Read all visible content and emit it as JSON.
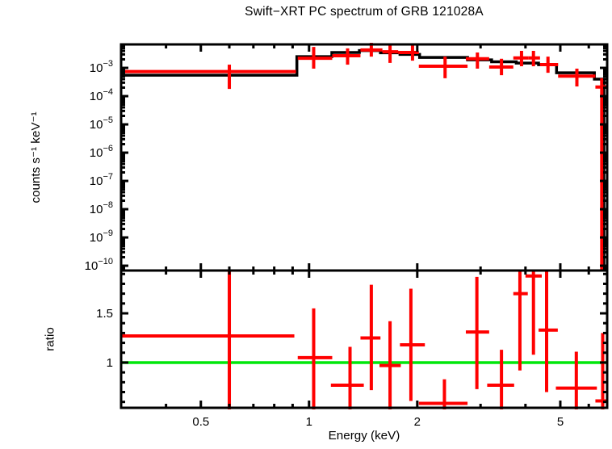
{
  "chart_data": {
    "type": "scatter",
    "title": "Swift−XRT PC spectrum of GRB 121028A",
    "xlabel": "Energy (keV)",
    "xscale": "log",
    "xlim": [
      0.3,
      6.75
    ],
    "xticks_labeled": [
      {
        "value": 0.5,
        "label": "0.5"
      },
      {
        "value": 1,
        "label": "1"
      },
      {
        "value": 2,
        "label": "2"
      },
      {
        "value": 5,
        "label": "5"
      }
    ],
    "xticks_minor": [
      0.4,
      0.6,
      0.7,
      0.8,
      0.9,
      3,
      4,
      6
    ],
    "colors": {
      "data": "#ff0000",
      "model": "#000000",
      "reference": "#00e70b",
      "axis": "#000000",
      "background": "#ffffff"
    },
    "panels": [
      {
        "name": "spectrum",
        "ylabel": "counts s⁻¹ keV⁻¹",
        "yscale": "log",
        "ylim_log10": [
          -10.17,
          -2.17
        ],
        "ytick_exponents": [
          -3,
          -4,
          -5,
          -6,
          -7,
          -8,
          -9,
          -10
        ],
        "series": [
          {
            "name": "data",
            "style": "cross-errorbar",
            "points": [
              {
                "e": 0.6,
                "e_lo": 0.3,
                "e_hi": 0.92,
                "v": 0.00074,
                "v_lo": 0.00018,
                "v_hi": 0.0013
              },
              {
                "e": 1.03,
                "e_lo": 0.93,
                "e_hi": 1.16,
                "v": 0.0022,
                "v_lo": 0.00094,
                "v_hi": 0.0055
              },
              {
                "e": 1.28,
                "e_lo": 1.16,
                "e_hi": 1.39,
                "v": 0.0027,
                "v_lo": 0.0013,
                "v_hi": 0.0049
              },
              {
                "e": 1.49,
                "e_lo": 1.39,
                "e_hi": 1.6,
                "v": 0.0043,
                "v_lo": 0.0025,
                "v_hi": 0.0077
              },
              {
                "e": 1.68,
                "e_lo": 1.6,
                "e_hi": 1.77,
                "v": 0.0037,
                "v_lo": 0.0015,
                "v_hi": 0.0067
              },
              {
                "e": 1.94,
                "e_lo": 1.77,
                "e_hi": 2.02,
                "v": 0.0035,
                "v_lo": 0.0018,
                "v_hi": 0.0063
              },
              {
                "e": 2.39,
                "e_lo": 2.02,
                "e_hi": 2.76,
                "v": 0.00114,
                "v_lo": 0.00043,
                "v_hi": 0.0025
              },
              {
                "e": 2.94,
                "e_lo": 2.73,
                "e_hi": 3.17,
                "v": 0.0021,
                "v_lo": 0.00094,
                "v_hi": 0.0035
              },
              {
                "e": 3.43,
                "e_lo": 3.17,
                "e_hi": 3.7,
                "v": 0.00107,
                "v_lo": 0.00055,
                "v_hi": 0.0021
              },
              {
                "e": 3.9,
                "e_lo": 3.7,
                "e_hi": 4.07,
                "v": 0.00225,
                "v_lo": 0.00114,
                "v_hi": 0.004
              },
              {
                "e": 4.21,
                "e_lo": 4.07,
                "e_hi": 4.39,
                "v": 0.00225,
                "v_lo": 0.00114,
                "v_hi": 0.004
              },
              {
                "e": 4.62,
                "e_lo": 4.39,
                "e_hi": 4.93,
                "v": 0.0013,
                "v_lo": 0.00067,
                "v_hi": 0.0025
              },
              {
                "e": 5.56,
                "e_lo": 4.93,
                "e_hi": 6.26,
                "v": 0.00051,
                "v_lo": 0.00022,
                "v_hi": 0.00094
              },
              {
                "e": 6.52,
                "e_lo": 6.26,
                "e_hi": 6.74,
                "v": 0.00021,
                "v_lo": null,
                "v_hi": 0.00043
              }
            ]
          },
          {
            "name": "model",
            "style": "step-line",
            "steps": [
              {
                "e_lo": 0.3,
                "e_hi": 0.925,
                "v": 0.00055
              },
              {
                "e_lo": 0.925,
                "e_hi": 1.157,
                "v": 0.0025
              },
              {
                "e_lo": 1.157,
                "e_hi": 1.38,
                "v": 0.0035
              },
              {
                "e_lo": 1.38,
                "e_hi": 1.58,
                "v": 0.0041
              },
              {
                "e_lo": 1.58,
                "e_hi": 1.79,
                "v": 0.0034
              },
              {
                "e_lo": 1.79,
                "e_hi": 2.03,
                "v": 0.003
              },
              {
                "e_lo": 2.03,
                "e_hi": 2.76,
                "v": 0.00235
              },
              {
                "e_lo": 2.76,
                "e_hi": 3.22,
                "v": 0.00193
              },
              {
                "e_lo": 3.22,
                "e_hi": 3.77,
                "v": 0.00164
              },
              {
                "e_lo": 3.77,
                "e_hi": 4.35,
                "v": 0.00148
              },
              {
                "e_lo": 4.35,
                "e_hi": 4.88,
                "v": 0.0013
              },
              {
                "e_lo": 4.88,
                "e_hi": 6.22,
                "v": 0.00067
              },
              {
                "e_lo": 6.22,
                "e_hi": 6.61,
                "v": 0.0004
              }
            ],
            "drop_to_floor_at": 6.61
          }
        ]
      },
      {
        "name": "ratio",
        "ylabel": "ratio",
        "yscale": "linear",
        "ylim": [
          0.54,
          1.935
        ],
        "yticks_labeled": [
          {
            "value": 1,
            "label": "1"
          },
          {
            "value": 1.5,
            "label": "1.5"
          }
        ],
        "yticks_minor": [
          0.6,
          0.7,
          0.8,
          0.9,
          1.1,
          1.2,
          1.3,
          1.4,
          1.6,
          1.7,
          1.8,
          1.9
        ],
        "reference_line": {
          "value": 1.0
        },
        "points": [
          {
            "e": 0.6,
            "e_lo": 0.3,
            "e_hi": 0.91,
            "ratio": 1.27,
            "r_lo": null,
            "r_hi": null
          },
          {
            "e": 1.03,
            "e_lo": 0.93,
            "e_hi": 1.16,
            "ratio": 1.05,
            "r_lo": null,
            "r_hi": 1.55
          },
          {
            "e": 1.3,
            "e_lo": 1.15,
            "e_hi": 1.42,
            "ratio": 0.77,
            "r_lo": null,
            "r_hi": 1.16
          },
          {
            "e": 1.49,
            "e_lo": 1.39,
            "e_hi": 1.58,
            "ratio": 1.25,
            "r_lo": 0.72,
            "r_hi": 1.79
          },
          {
            "e": 1.68,
            "e_lo": 1.57,
            "e_hi": 1.8,
            "ratio": 0.97,
            "r_lo": null,
            "r_hi": 1.42
          },
          {
            "e": 1.92,
            "e_lo": 1.79,
            "e_hi": 2.1,
            "ratio": 1.18,
            "r_lo": 0.61,
            "r_hi": 1.75
          },
          {
            "e": 2.38,
            "e_lo": 2.02,
            "e_hi": 2.76,
            "ratio": 0.585,
            "r_lo": null,
            "r_hi": 0.83
          },
          {
            "e": 2.93,
            "e_lo": 2.73,
            "e_hi": 3.17,
            "ratio": 1.31,
            "r_lo": 0.73,
            "r_hi": 1.87
          },
          {
            "e": 3.43,
            "e_lo": 3.13,
            "e_hi": 3.72,
            "ratio": 0.77,
            "r_lo": null,
            "r_hi": 1.13
          },
          {
            "e": 3.86,
            "e_lo": 3.7,
            "e_hi": 4.06,
            "ratio": 1.7,
            "r_lo": 0.92,
            "r_hi": null
          },
          {
            "e": 4.21,
            "e_lo": 4.0,
            "e_hi": 4.44,
            "ratio": 1.88,
            "r_lo": 1.08,
            "r_hi": null
          },
          {
            "e": 4.58,
            "e_lo": 4.35,
            "e_hi": 4.92,
            "ratio": 1.33,
            "r_lo": 0.7,
            "r_hi": null
          },
          {
            "e": 5.54,
            "e_lo": 4.86,
            "e_hi": 6.32,
            "ratio": 0.74,
            "r_lo": null,
            "r_hi": 1.11
          },
          {
            "e": 6.56,
            "e_lo": 6.26,
            "e_hi": 6.74,
            "ratio": 0.61,
            "r_lo": null,
            "r_hi": 1.3
          }
        ]
      }
    ]
  }
}
